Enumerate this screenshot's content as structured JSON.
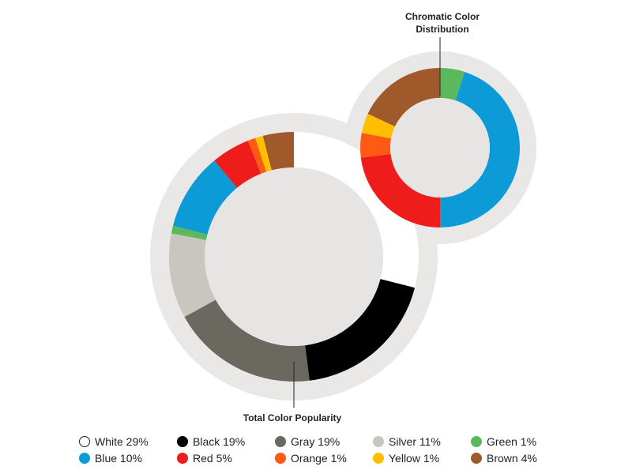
{
  "chart_data": [
    {
      "type": "donut",
      "title": "Total Color Popularity",
      "slices": [
        {
          "name": "White",
          "value": 29,
          "color": "#ffffff"
        },
        {
          "name": "Black",
          "value": 19,
          "color": "#000000"
        },
        {
          "name": "Gray",
          "value": 19,
          "color": "#6b6860"
        },
        {
          "name": "Silver",
          "value": 11,
          "color": "#c9c6bf"
        },
        {
          "name": "Green",
          "value": 1,
          "color": "#5cb85c"
        },
        {
          "name": "Blue",
          "value": 10,
          "color": "#0d9bd8"
        },
        {
          "name": "Red",
          "value": 5,
          "color": "#ef1c1c"
        },
        {
          "name": "Orange",
          "value": 1,
          "color": "#ff5a14"
        },
        {
          "name": "Yellow",
          "value": 1,
          "color": "#ffbf00"
        },
        {
          "name": "Brown",
          "value": 4,
          "color": "#a0592a"
        }
      ]
    },
    {
      "type": "donut",
      "title": "Chromatic Color Distribution",
      "slices": [
        {
          "name": "Green",
          "value": 5,
          "color": "#5cb85c"
        },
        {
          "name": "Blue",
          "value": 45,
          "color": "#0d9bd8"
        },
        {
          "name": "Red",
          "value": 23,
          "color": "#ef1c1c"
        },
        {
          "name": "Orange",
          "value": 5,
          "color": "#ff5a14"
        },
        {
          "name": "Yellow",
          "value": 4,
          "color": "#ffbf00"
        },
        {
          "name": "Brown",
          "value": 18,
          "color": "#a0592a"
        }
      ]
    }
  ],
  "legend": {
    "rows": [
      [
        {
          "label": "White 29%",
          "color": "#ffffff"
        },
        {
          "label": "Black 19%",
          "color": "#000000"
        },
        {
          "label": "Gray 19%",
          "color": "#6b6860"
        },
        {
          "label": "Silver 11%",
          "color": "#c9c6bf"
        },
        {
          "label": "Green 1%",
          "color": "#5cb85c"
        }
      ],
      [
        {
          "label": "Blue 10%",
          "color": "#0d9bd8"
        },
        {
          "label": "Red 5%",
          "color": "#ef1c1c"
        },
        {
          "label": "Orange 1%",
          "color": "#ff5a14"
        },
        {
          "label": "Yellow 1%",
          "color": "#ffbf00"
        },
        {
          "label": "Brown 4%",
          "color": "#a0592a"
        }
      ]
    ]
  },
  "colors": {
    "ring_background": "#e9e8e6",
    "center": "#e6e5e3"
  }
}
